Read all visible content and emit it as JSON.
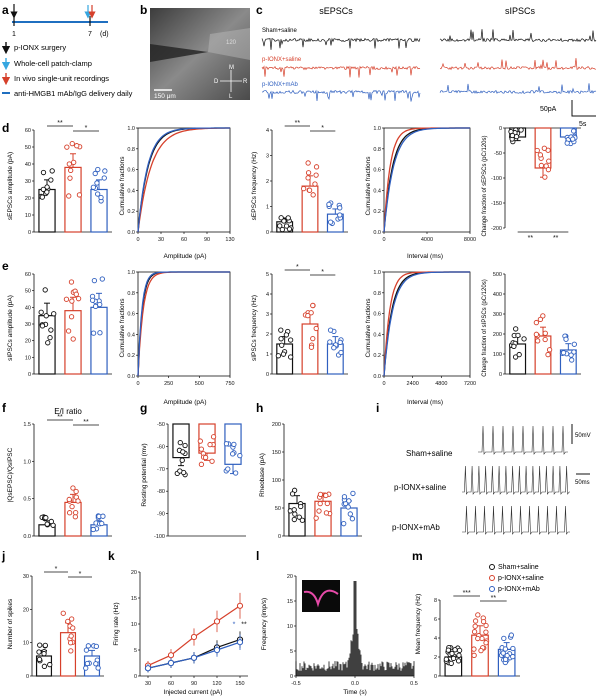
{
  "panel_letters": [
    "a",
    "b",
    "c",
    "d",
    "e",
    "f",
    "g",
    "h",
    "i",
    "j",
    "k",
    "l",
    "m"
  ],
  "colors": {
    "sham": "#111111",
    "saline": "#d6402b",
    "mab": "#2f5fbf",
    "legend_blue": "#1f6fc0",
    "arrow_blue": "#35a6e0"
  },
  "timeline": {
    "ticks": [
      "1",
      "7",
      "(d)"
    ],
    "legend": [
      {
        "arrow": "down-arrow-black",
        "label": "p-IONX surgery"
      },
      {
        "arrow": "down-arrow-lightblue",
        "label": "Whole-cell patch-clamp"
      },
      {
        "arrow": "down-arrow-red",
        "label": "In vivo single-unit recordings"
      },
      {
        "arrow": "line-blue",
        "label": "anti-HMGB1 mAb/IgG delivery daily"
      }
    ]
  },
  "micro": {
    "scale": "150 μm",
    "scalebar_pct": 0.45,
    "compass": [
      "M",
      "D",
      "R",
      "L"
    ],
    "inner_label": "120"
  },
  "traces": {
    "title_left": "sEPSCs",
    "title_right": "sIPSCs",
    "rows": [
      "Sham+saline",
      "p-IONX+saline",
      "p-IONX+mAb"
    ],
    "scale_y": "50pA",
    "scale_x": "5s"
  },
  "panel_d": {
    "amp_ylabel": "sEPSCs amplitude (pA)",
    "amp_yticks": [
      "0",
      "10",
      "20",
      "30",
      "40",
      "50",
      "60"
    ],
    "amp_chart": {
      "type": "bar",
      "means": [
        25,
        38,
        25
      ],
      "ylim": [
        0,
        60
      ],
      "sig": [
        "**",
        "*"
      ]
    },
    "cum_amp": {
      "ylabel": "Cumulative fractions",
      "xlabel": "Amplitude (pA)",
      "xticks": [
        "0",
        "30",
        "60",
        "90",
        "130"
      ],
      "yticks": [
        "0.0",
        "0.2",
        "0.4",
        "0.6",
        "0.8",
        "1.0"
      ]
    },
    "freq_ylabel": "sEPSCs frequency (Hz)",
    "freq_yticks": [
      "0",
      "1",
      "2",
      "3",
      "4"
    ],
    "freq_chart": {
      "type": "bar",
      "means": [
        0.4,
        1.8,
        0.7
      ],
      "ylim": [
        0,
        4
      ],
      "sig": [
        "**",
        "*"
      ]
    },
    "cum_int": {
      "ylabel": "Cumulative fractions",
      "xlabel": "Interval (ms)",
      "xticks": [
        "0",
        "4000",
        "8000"
      ],
      "yticks": [
        "0.0",
        "0.2",
        "0.4",
        "0.6",
        "0.8",
        "1.0"
      ]
    },
    "change_ylabel": "Change fraction of sEPSCs (pC/120s)",
    "change_yticks": [
      "0",
      "-50",
      "-100",
      "-150",
      "-200"
    ],
    "change_chart": {
      "type": "bar",
      "means": [
        -18,
        -80,
        -18
      ],
      "ylim": [
        -200,
        0
      ],
      "sig": [
        "**",
        "**"
      ]
    }
  },
  "panel_e": {
    "amp_ylabel": "sIPSCs amplitude (pA)",
    "amp_yticks": [
      "0",
      "10",
      "20",
      "30",
      "40",
      "50",
      "60"
    ],
    "amp_chart": {
      "type": "bar",
      "means": [
        35,
        38,
        40
      ],
      "ylim": [
        0,
        60
      ]
    },
    "cum_amp": {
      "ylabel": "Cumulative fractions",
      "xlabel": "Amplitude (pA)",
      "xticks": [
        "0",
        "250",
        "500",
        "750"
      ],
      "yticks": [
        "0.0",
        "0.2",
        "0.4",
        "0.6",
        "0.8",
        "1.0"
      ]
    },
    "freq_ylabel": "sIPSCs frequency (Hz)",
    "freq_yticks": [
      "0",
      "1",
      "2",
      "3",
      "4",
      "5"
    ],
    "freq_chart": {
      "type": "bar",
      "means": [
        1.5,
        2.5,
        1.5
      ],
      "ylim": [
        0,
        5
      ],
      "sig": [
        "*",
        "*"
      ]
    },
    "cum_int": {
      "ylabel": "Cumulative fractions",
      "xlabel": "Interval (ms)",
      "xticks": [
        "0",
        "2400",
        "4800",
        "7200"
      ],
      "yticks": [
        "0.0",
        "0.2",
        "0.4",
        "0.6",
        "0.8",
        "1.0"
      ]
    },
    "change_ylabel": "Charge fraction of sIPSCs (pC/120s)",
    "change_yticks": [
      "0",
      "100",
      "200",
      "300",
      "400",
      "500"
    ],
    "change_chart": {
      "type": "bar",
      "means": [
        150,
        190,
        120
      ],
      "ylim": [
        0,
        500
      ]
    }
  },
  "panel_f": {
    "title": "E/I ratio",
    "ylabel": "|QsEPSC|/QsIPSC",
    "yticks": [
      "0.0",
      "0.5",
      "1.0",
      "1.5"
    ],
    "chart": {
      "type": "bar",
      "means": [
        0.15,
        0.45,
        0.15
      ],
      "ylim": [
        0,
        1.5
      ],
      "sig": [
        "**",
        "**"
      ]
    }
  },
  "panel_g": {
    "ylabel": "Resting potential (mv)",
    "yticks": [
      "-50",
      "-60",
      "-70",
      "-80",
      "-90",
      "-100"
    ],
    "chart": {
      "type": "bar",
      "means": [
        -65,
        -63,
        -68
      ],
      "ylim": [
        -100,
        -50
      ]
    }
  },
  "panel_h": {
    "ylabel": "Rheobase (pA)",
    "yticks": [
      "0",
      "50",
      "100",
      "150",
      "200"
    ],
    "chart": {
      "type": "bar",
      "means": [
        58,
        62,
        50
      ],
      "ylim": [
        0,
        200
      ]
    }
  },
  "panel_i": {
    "rows": [
      "Sham+saline",
      "p-IONX+saline",
      "p-IONX+mAb"
    ],
    "scale_mv": "50mV",
    "scale_ms": "50ms"
  },
  "panel_j": {
    "ylabel": "Number of spikes",
    "yticks": [
      "0",
      "10",
      "20",
      "30"
    ],
    "chart": {
      "type": "bar",
      "means": [
        6,
        13,
        6
      ],
      "ylim": [
        0,
        30
      ],
      "sig": [
        "*",
        "*"
      ]
    }
  },
  "panel_k": {
    "ylabel": "Firing rate (Hz)",
    "xlabel": "Injected current (pA)",
    "yticks": [
      "0",
      "5",
      "10",
      "15",
      "20"
    ],
    "xticks": [
      "30",
      "60",
      "90",
      "120",
      "150"
    ],
    "sig": [
      "*",
      "**"
    ],
    "chart": {
      "type": "line",
      "x": [
        30,
        60,
        90,
        120,
        150
      ],
      "series": [
        {
          "values": [
            1.5,
            2.5,
            3.5,
            5.5,
            7.0
          ]
        },
        {
          "values": [
            2.0,
            4.0,
            7.5,
            10.5,
            13.5
          ]
        },
        {
          "values": [
            1.5,
            2.5,
            3.5,
            5.0,
            6.5
          ]
        }
      ],
      "ylim": [
        0,
        20
      ]
    }
  },
  "panel_l": {
    "ylabel": "Frequency (imp/s)",
    "xlabel": "Time (s)",
    "yticks": [
      "0",
      "5",
      "10",
      "15",
      "20"
    ],
    "xticks": [
      "-0.5",
      "0.0",
      "0.5"
    ]
  },
  "panel_m": {
    "ylabel": "Mean frequency (Hz)",
    "yticks": [
      "0",
      "2",
      "4",
      "6",
      "8"
    ],
    "legend": [
      "Sham+saline",
      "p-IONX+saline",
      "p-IONX+mAb"
    ],
    "chart": {
      "type": "bar",
      "means": [
        2.0,
        4.3,
        2.8
      ],
      "ylim": [
        0,
        8
      ],
      "sig": [
        "***",
        "**"
      ]
    }
  }
}
